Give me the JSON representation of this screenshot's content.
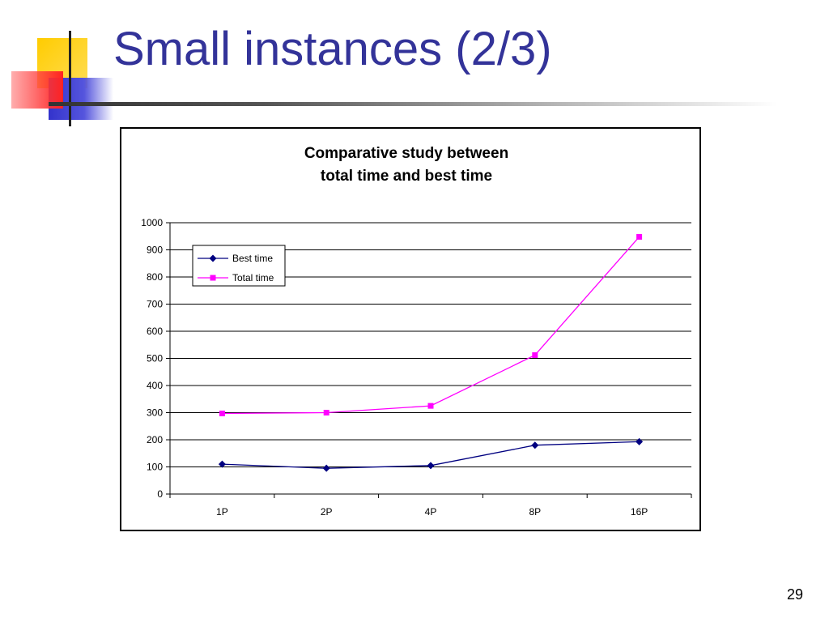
{
  "slide": {
    "title": "Small instances (2/3)",
    "page_number": "29"
  },
  "colors": {
    "title": "#333399",
    "best_time": "#000080",
    "total_time": "#ff00ff",
    "deco_yellow": "#ffcc00",
    "deco_red": "#ff3333",
    "deco_blue": "#3333cc"
  },
  "chart_data": {
    "type": "line",
    "title": "Comparative study between total time and best time",
    "title_lines": [
      "Comparative study between",
      "total time and best time"
    ],
    "categories": [
      "1P",
      "2P",
      "4P",
      "8P",
      "16P"
    ],
    "ylim": [
      0,
      1000
    ],
    "yticks": [
      0,
      100,
      200,
      300,
      400,
      500,
      600,
      700,
      800,
      900,
      1000
    ],
    "grid": true,
    "legend_position": "top-left",
    "series": [
      {
        "name": "Best time",
        "marker": "diamond",
        "values": [
          110,
          95,
          105,
          180,
          193
        ]
      },
      {
        "name": "Total time",
        "marker": "square",
        "values": [
          297,
          300,
          325,
          512,
          948
        ]
      }
    ]
  }
}
